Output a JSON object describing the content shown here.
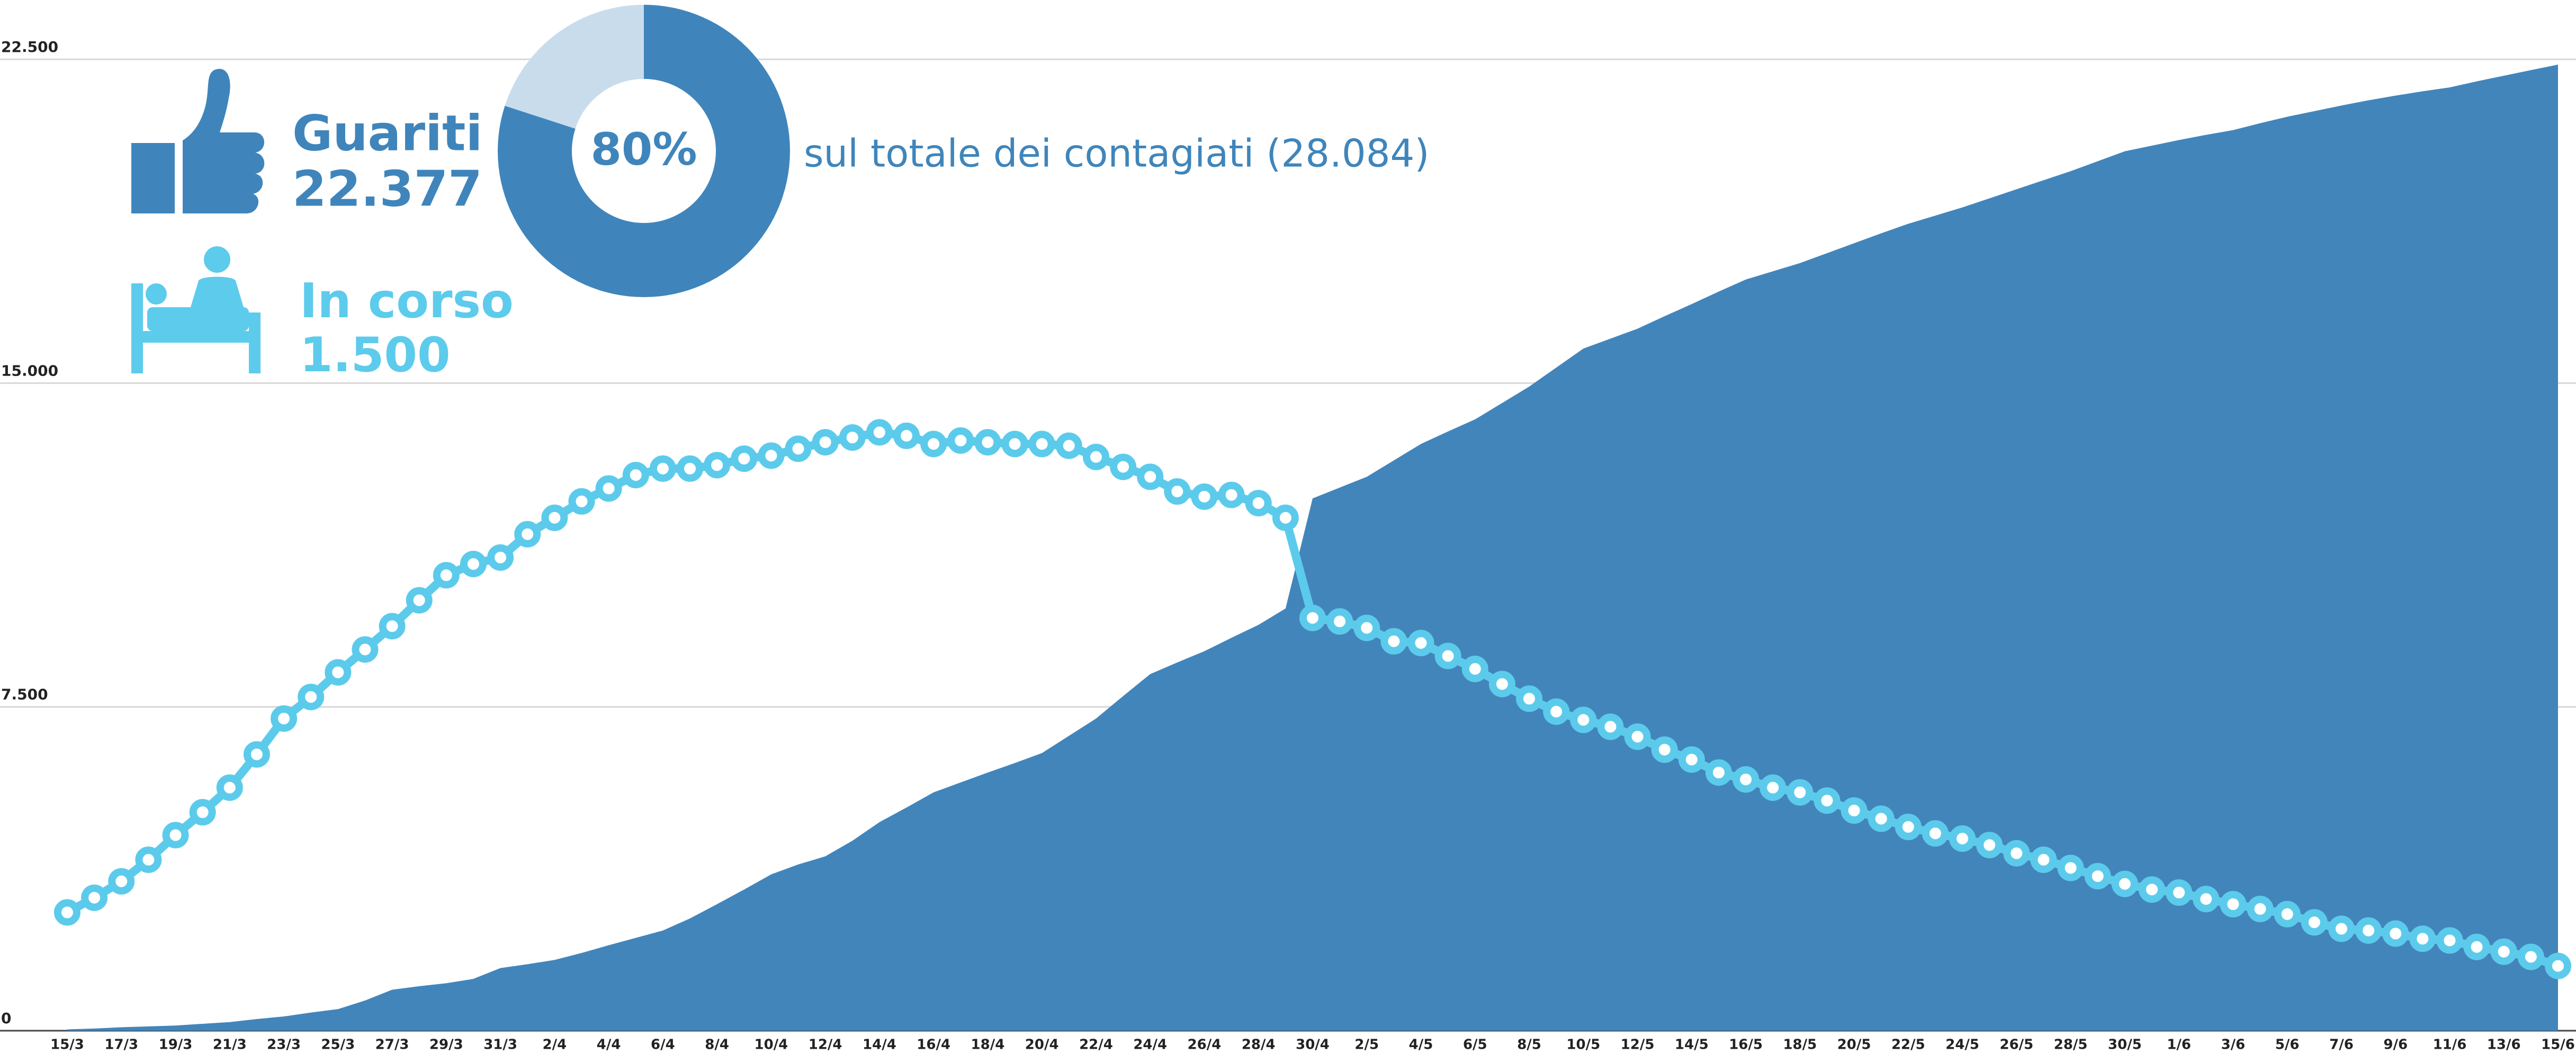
{
  "chart_data": [
    {
      "type": "area_line",
      "categories": [
        "15/3",
        null,
        "17/3",
        null,
        "19/3",
        null,
        "21/3",
        null,
        "23/3",
        null,
        "25/3",
        null,
        "27/3",
        null,
        "29/3",
        null,
        "31/3",
        null,
        "2/4",
        null,
        "4/4",
        null,
        "6/4",
        null,
        "8/4",
        null,
        "10/4",
        null,
        "12/4",
        null,
        "14/4",
        null,
        "16/4",
        null,
        "18/4",
        null,
        "20/4",
        null,
        "22/4",
        null,
        "24/4",
        null,
        "26/4",
        null,
        "28/4",
        null,
        "30/4",
        null,
        "2/5",
        null,
        "4/5",
        null,
        "6/5",
        null,
        "8/5",
        null,
        "10/5",
        null,
        "12/5",
        null,
        "14/5",
        null,
        "16/5",
        null,
        "18/5",
        null,
        "20/5",
        null,
        "22/5",
        null,
        "24/5",
        null,
        "26/5",
        null,
        "28/5",
        null,
        "30/5",
        null,
        "1/6",
        null,
        "3/6",
        null,
        "5/6",
        null,
        "7/6",
        null,
        "9/6",
        null,
        "11/6",
        null,
        "13/6",
        null,
        "15/6"
      ],
      "series": [
        {
          "name": "Guariti",
          "color": "#4285bb",
          "mark": "area",
          "total_label": "22.377",
          "values": [
            30,
            50,
            80,
            100,
            120,
            160,
            200,
            270,
            330,
            420,
            500,
            700,
            950,
            1030,
            1100,
            1200,
            1450,
            1540,
            1640,
            1800,
            1980,
            2150,
            2320,
            2600,
            2930,
            3270,
            3620,
            3850,
            4040,
            4400,
            4830,
            5170,
            5520,
            5750,
            5980,
            6200,
            6430,
            6830,
            7230,
            7750,
            8260,
            8530,
            8790,
            9100,
            9400,
            9780,
            12330,
            12580,
            12830,
            13210,
            13590,
            13880,
            14160,
            14540,
            14920,
            15360,
            15800,
            16030,
            16260,
            16550,
            16830,
            17120,
            17400,
            17590,
            17780,
            18010,
            18240,
            18470,
            18690,
            18880,
            19070,
            19280,
            19490,
            19700,
            19910,
            20140,
            20370,
            20500,
            20630,
            20750,
            20860,
            21020,
            21170,
            21300,
            21430,
            21550,
            21660,
            21760,
            21850,
            21990,
            22120,
            22250,
            22377
          ]
        },
        {
          "name": "In corso",
          "color": "#5ccbeb",
          "mark": "line",
          "total_label": "1.500",
          "values": [
            2740,
            3080,
            3460,
            3960,
            4530,
            5060,
            5630,
            6400,
            7230,
            7730,
            8300,
            8830,
            9370,
            9970,
            10550,
            10810,
            10960,
            11500,
            11880,
            12260,
            12560,
            12870,
            13020,
            13020,
            13100,
            13250,
            13320,
            13480,
            13630,
            13740,
            13860,
            13780,
            13590,
            13670,
            13630,
            13590,
            13590,
            13550,
            13290,
            13060,
            12830,
            12490,
            12370,
            12410,
            12220,
            11880,
            9560,
            9480,
            9330,
            9020,
            8980,
            8680,
            8380,
            8030,
            7690,
            7390,
            7200,
            7040,
            6810,
            6510,
            6280,
            5980,
            5820,
            5630,
            5520,
            5330,
            5100,
            4910,
            4720,
            4570,
            4450,
            4300,
            4110,
            3960,
            3770,
            3580,
            3400,
            3270,
            3200,
            3050,
            2930,
            2820,
            2700,
            2510,
            2360,
            2320,
            2250,
            2130,
            2090,
            1940,
            1830,
            1710,
            1500
          ]
        }
      ],
      "ylim": [
        0,
        22500
      ],
      "yticks": [
        0,
        {
          "value": 7500,
          "label": "7.500"
        },
        {
          "value": 15000,
          "label": "15.000"
        },
        {
          "value": 22500,
          "label": "22.500"
        }
      ],
      "grid": true
    },
    {
      "type": "pie",
      "donut": true,
      "values": [
        80,
        20
      ],
      "value_labels": [
        "80%",
        null
      ],
      "colors": [
        "#3f85bb",
        "#c9dcec"
      ],
      "caption": "sul totale dei contagiati (28.084)"
    }
  ]
}
